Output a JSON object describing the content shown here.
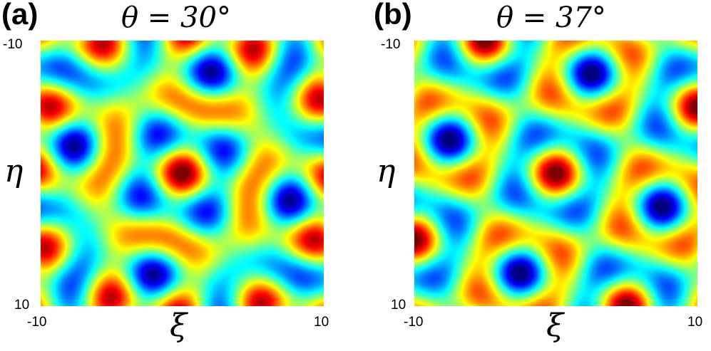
{
  "chart_data": [
    {
      "type": "heatmap",
      "panel_label": "(a)",
      "title": "θ = 30°",
      "xlabel": "ξ",
      "ylabel": "η",
      "xlim": [
        -10,
        10
      ],
      "ylim": [
        -10,
        10
      ],
      "x_ticks": [
        "-10",
        "10"
      ],
      "y_ticks": [
        "-10",
        "10"
      ],
      "angle_deg": 30,
      "colormap": "jet",
      "grid": false
    },
    {
      "type": "heatmap",
      "panel_label": "(b)",
      "title": "θ = 37°",
      "xlabel": "ξ",
      "ylabel": "η",
      "xlim": [
        -10,
        10
      ],
      "ylim": [
        -10,
        10
      ],
      "x_ticks": [
        "-10",
        "10"
      ],
      "y_ticks": [
        "-10",
        "10"
      ],
      "angle_deg": 37,
      "colormap": "jet",
      "grid": false
    }
  ]
}
